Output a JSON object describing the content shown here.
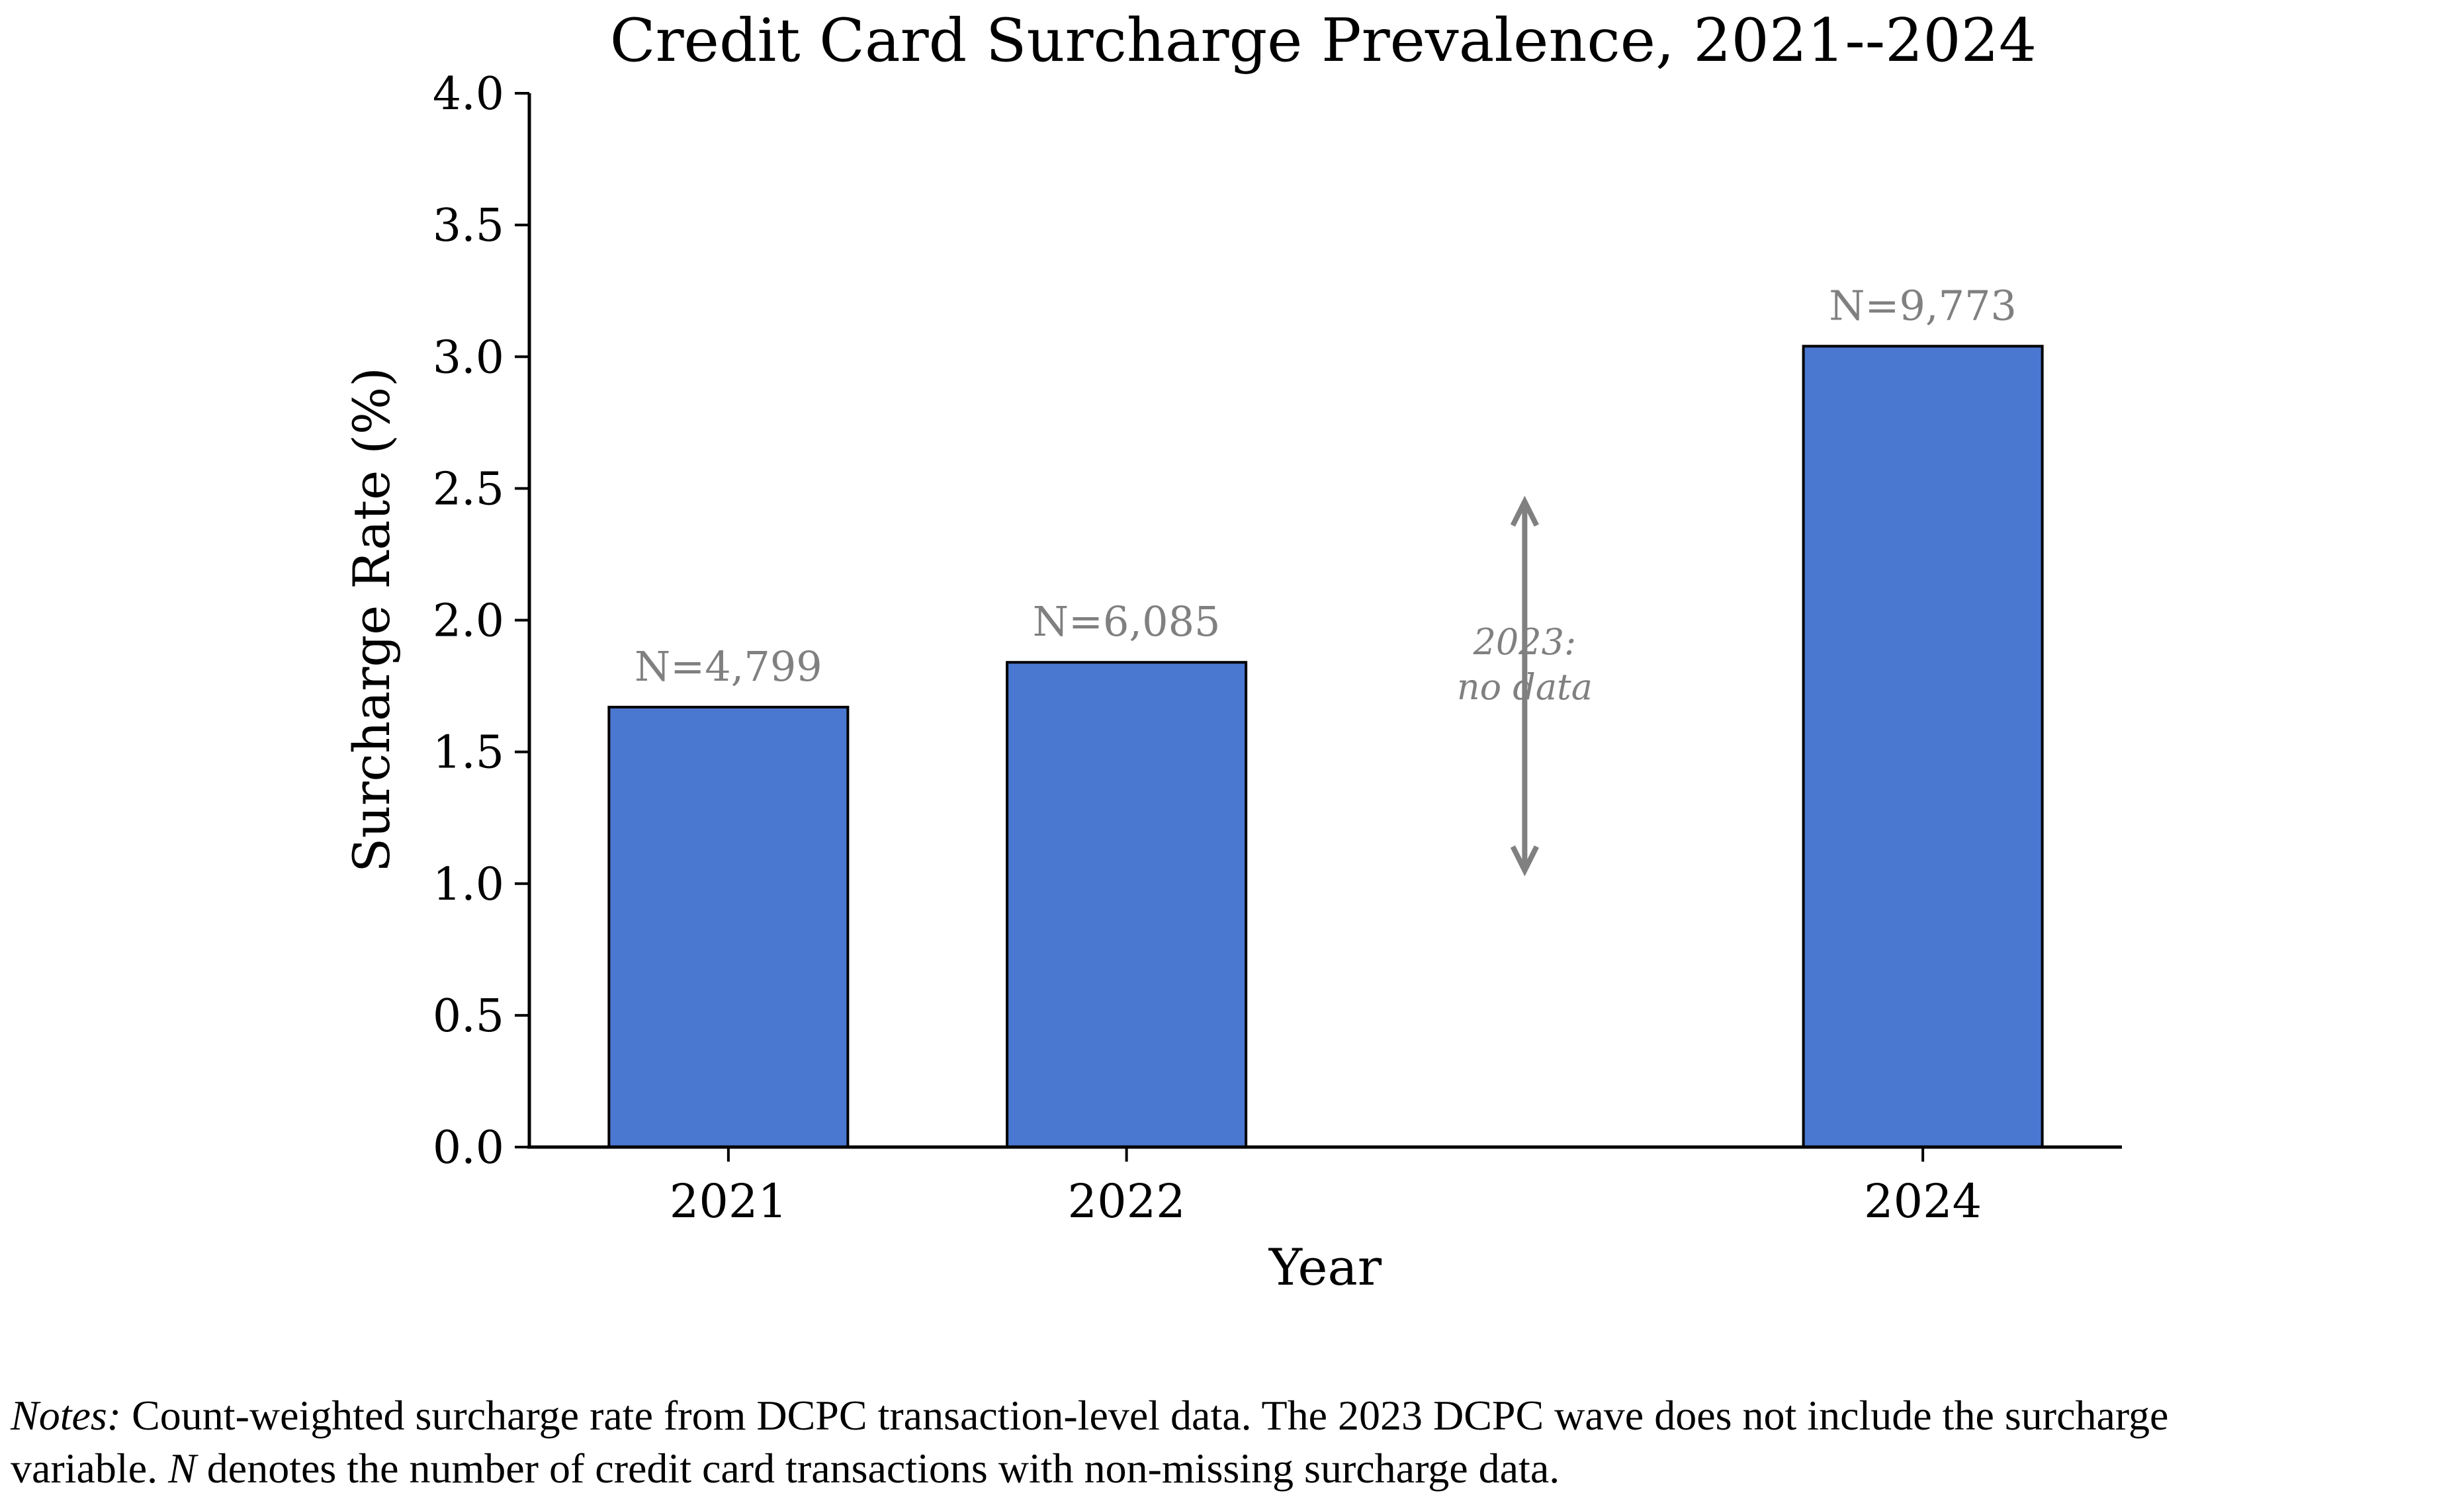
{
  "chart_data": {
    "type": "bar",
    "title": "Credit Card Surcharge Prevalence, 2021--2024",
    "xlabel": "Year",
    "ylabel": "Surcharge Rate (%)",
    "ylim": [
      0,
      4.0
    ],
    "yticks": [
      "0.0",
      "0.5",
      "1.0",
      "1.5",
      "2.0",
      "2.5",
      "3.0",
      "3.5",
      "4.0"
    ],
    "x_domain": [
      2020.5,
      2024.5
    ],
    "bar_width": 0.6,
    "grid": false,
    "bar_color": "#4a77d0",
    "label_color": "#808080",
    "bars": [
      {
        "category": "2021",
        "x": 2021,
        "value": 1.67,
        "label": "N=4,799"
      },
      {
        "category": "2022",
        "x": 2022,
        "value": 1.84,
        "label": "N=6,085"
      },
      {
        "category": "2024",
        "x": 2024,
        "value": 3.04,
        "label": "N=9,773"
      }
    ],
    "annotation": {
      "x": 2023,
      "text_line1": "2023:",
      "text_line2": "no data",
      "arrow_from": 1.05,
      "arrow_to": 2.45,
      "text_y": 1.75
    }
  },
  "notes": {
    "prefix": "Notes:",
    "line1": "Count-weighted surcharge rate from DCPC transaction-level data. The 2023 DCPC wave does not include the surcharge",
    "line2_pre": "variable.",
    "line2_n": "N",
    "line2_post": "denotes the number of credit card transactions with non-missing surcharge data."
  }
}
